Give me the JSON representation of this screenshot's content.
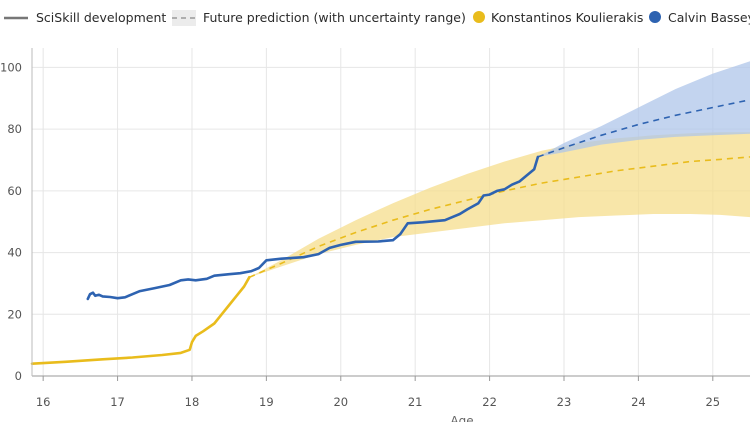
{
  "colors": {
    "konstantinos": "#E9BC1C",
    "calvin": "#2E63B1",
    "legend_line": "#777777",
    "grid": "#e6e6e6",
    "band_konstantinos": "#F6DD8C",
    "band_calvin": "#AFC6EA"
  },
  "legend": {
    "development_label": "SciSkill development",
    "prediction_label": "Future prediction (with uncertainty range)",
    "konstantinos_label": "Konstantinos Koulierakis",
    "calvin_label": "Calvin Bassey"
  },
  "chart_data": {
    "type": "line",
    "xlabel": "Age",
    "ylabel": "",
    "xlim": [
      15.85,
      25.5
    ],
    "ylim": [
      0,
      105
    ],
    "x_ticks": [
      16,
      17,
      18,
      19,
      20,
      21,
      22,
      23,
      24,
      25
    ],
    "y_ticks": [
      0,
      20,
      40,
      60,
      80,
      100
    ],
    "grid": true,
    "series": [
      {
        "name": "Konstantinos Koulierakis",
        "kind": "actual",
        "points": [
          [
            15.85,
            4
          ],
          [
            16.3,
            4.6
          ],
          [
            16.8,
            5.4
          ],
          [
            17.2,
            6.0
          ],
          [
            17.6,
            6.8
          ],
          [
            17.85,
            7.5
          ],
          [
            17.97,
            8.5
          ],
          [
            18.0,
            11
          ],
          [
            18.05,
            13
          ],
          [
            18.15,
            14.5
          ],
          [
            18.3,
            17
          ],
          [
            18.4,
            20
          ],
          [
            18.5,
            23
          ],
          [
            18.6,
            26
          ],
          [
            18.7,
            29
          ],
          [
            18.77,
            32
          ]
        ]
      },
      {
        "name": "Calvin Bassey",
        "kind": "actual",
        "points": [
          [
            16.6,
            25
          ],
          [
            16.63,
            26.5
          ],
          [
            16.67,
            27
          ],
          [
            16.7,
            26
          ],
          [
            16.75,
            26.3
          ],
          [
            16.8,
            25.8
          ],
          [
            16.9,
            25.6
          ],
          [
            17.0,
            25.2
          ],
          [
            17.1,
            25.5
          ],
          [
            17.2,
            26.5
          ],
          [
            17.3,
            27.5
          ],
          [
            17.5,
            28.5
          ],
          [
            17.7,
            29.5
          ],
          [
            17.85,
            31
          ],
          [
            17.95,
            31.3
          ],
          [
            18.05,
            31
          ],
          [
            18.2,
            31.5
          ],
          [
            18.3,
            32.5
          ],
          [
            18.5,
            33
          ],
          [
            18.65,
            33.3
          ],
          [
            18.8,
            34
          ],
          [
            18.9,
            35
          ],
          [
            19.0,
            37.5
          ],
          [
            19.2,
            38
          ],
          [
            19.5,
            38.5
          ],
          [
            19.7,
            39.5
          ],
          [
            19.85,
            41.5
          ],
          [
            20.0,
            42.5
          ],
          [
            20.2,
            43.5
          ],
          [
            20.5,
            43.6
          ],
          [
            20.7,
            44
          ],
          [
            20.8,
            46
          ],
          [
            20.9,
            49.5
          ],
          [
            21.1,
            49.8
          ],
          [
            21.4,
            50.5
          ],
          [
            21.5,
            51.5
          ],
          [
            21.6,
            52.5
          ],
          [
            21.7,
            54
          ],
          [
            21.85,
            56
          ],
          [
            21.92,
            58.5
          ],
          [
            22.0,
            58.8
          ],
          [
            22.1,
            60
          ],
          [
            22.2,
            60.5
          ],
          [
            22.3,
            62
          ],
          [
            22.4,
            63
          ],
          [
            22.5,
            65
          ],
          [
            22.6,
            67
          ],
          [
            22.65,
            71
          ]
        ]
      },
      {
        "name": "Konstantinos Koulierakis",
        "kind": "prediction",
        "points": [
          [
            18.77,
            32
          ],
          [
            19.2,
            36.5
          ],
          [
            19.7,
            42
          ],
          [
            20.2,
            46.5
          ],
          [
            20.7,
            50.5
          ],
          [
            21.2,
            54
          ],
          [
            21.7,
            57
          ],
          [
            22.2,
            60
          ],
          [
            22.7,
            62.5
          ],
          [
            23.2,
            64.5
          ],
          [
            23.7,
            66.5
          ],
          [
            24.2,
            68
          ],
          [
            24.7,
            69.5
          ],
          [
            25.1,
            70.2
          ],
          [
            25.5,
            71
          ]
        ],
        "lower": [
          [
            18.77,
            32
          ],
          [
            19.2,
            35.5
          ],
          [
            19.7,
            39.5
          ],
          [
            20.2,
            42.5
          ],
          [
            20.7,
            45
          ],
          [
            21.2,
            46.5
          ],
          [
            21.7,
            48
          ],
          [
            22.2,
            49.5
          ],
          [
            22.7,
            50.5
          ],
          [
            23.2,
            51.5
          ],
          [
            23.7,
            52
          ],
          [
            24.2,
            52.5
          ],
          [
            24.7,
            52.5
          ],
          [
            25.1,
            52.2
          ],
          [
            25.5,
            51.5
          ]
        ],
        "upper": [
          [
            18.77,
            32
          ],
          [
            19.2,
            37.5
          ],
          [
            19.7,
            44.5
          ],
          [
            20.2,
            50.5
          ],
          [
            20.7,
            56
          ],
          [
            21.2,
            61
          ],
          [
            21.7,
            65.5
          ],
          [
            22.2,
            69.5
          ],
          [
            22.7,
            73
          ],
          [
            23.2,
            75.5
          ],
          [
            23.7,
            77
          ],
          [
            24.2,
            78
          ],
          [
            24.7,
            78.7
          ],
          [
            25.1,
            79
          ],
          [
            25.5,
            79
          ]
        ]
      },
      {
        "name": "Calvin Bassey",
        "kind": "prediction",
        "points": [
          [
            22.65,
            71
          ],
          [
            23.0,
            74
          ],
          [
            23.5,
            78
          ],
          [
            24.0,
            81.5
          ],
          [
            24.5,
            84.5
          ],
          [
            25.0,
            87
          ],
          [
            25.5,
            89.5
          ]
        ],
        "lower": [
          [
            22.65,
            71
          ],
          [
            23.0,
            72.5
          ],
          [
            23.5,
            75
          ],
          [
            24.0,
            76.5
          ],
          [
            24.5,
            77.5
          ],
          [
            25.0,
            78
          ],
          [
            25.5,
            78.5
          ]
        ],
        "upper": [
          [
            22.65,
            71
          ],
          [
            23.0,
            75.5
          ],
          [
            23.5,
            81
          ],
          [
            24.0,
            87
          ],
          [
            24.5,
            93
          ],
          [
            25.0,
            98
          ],
          [
            25.5,
            102
          ]
        ]
      }
    ]
  }
}
